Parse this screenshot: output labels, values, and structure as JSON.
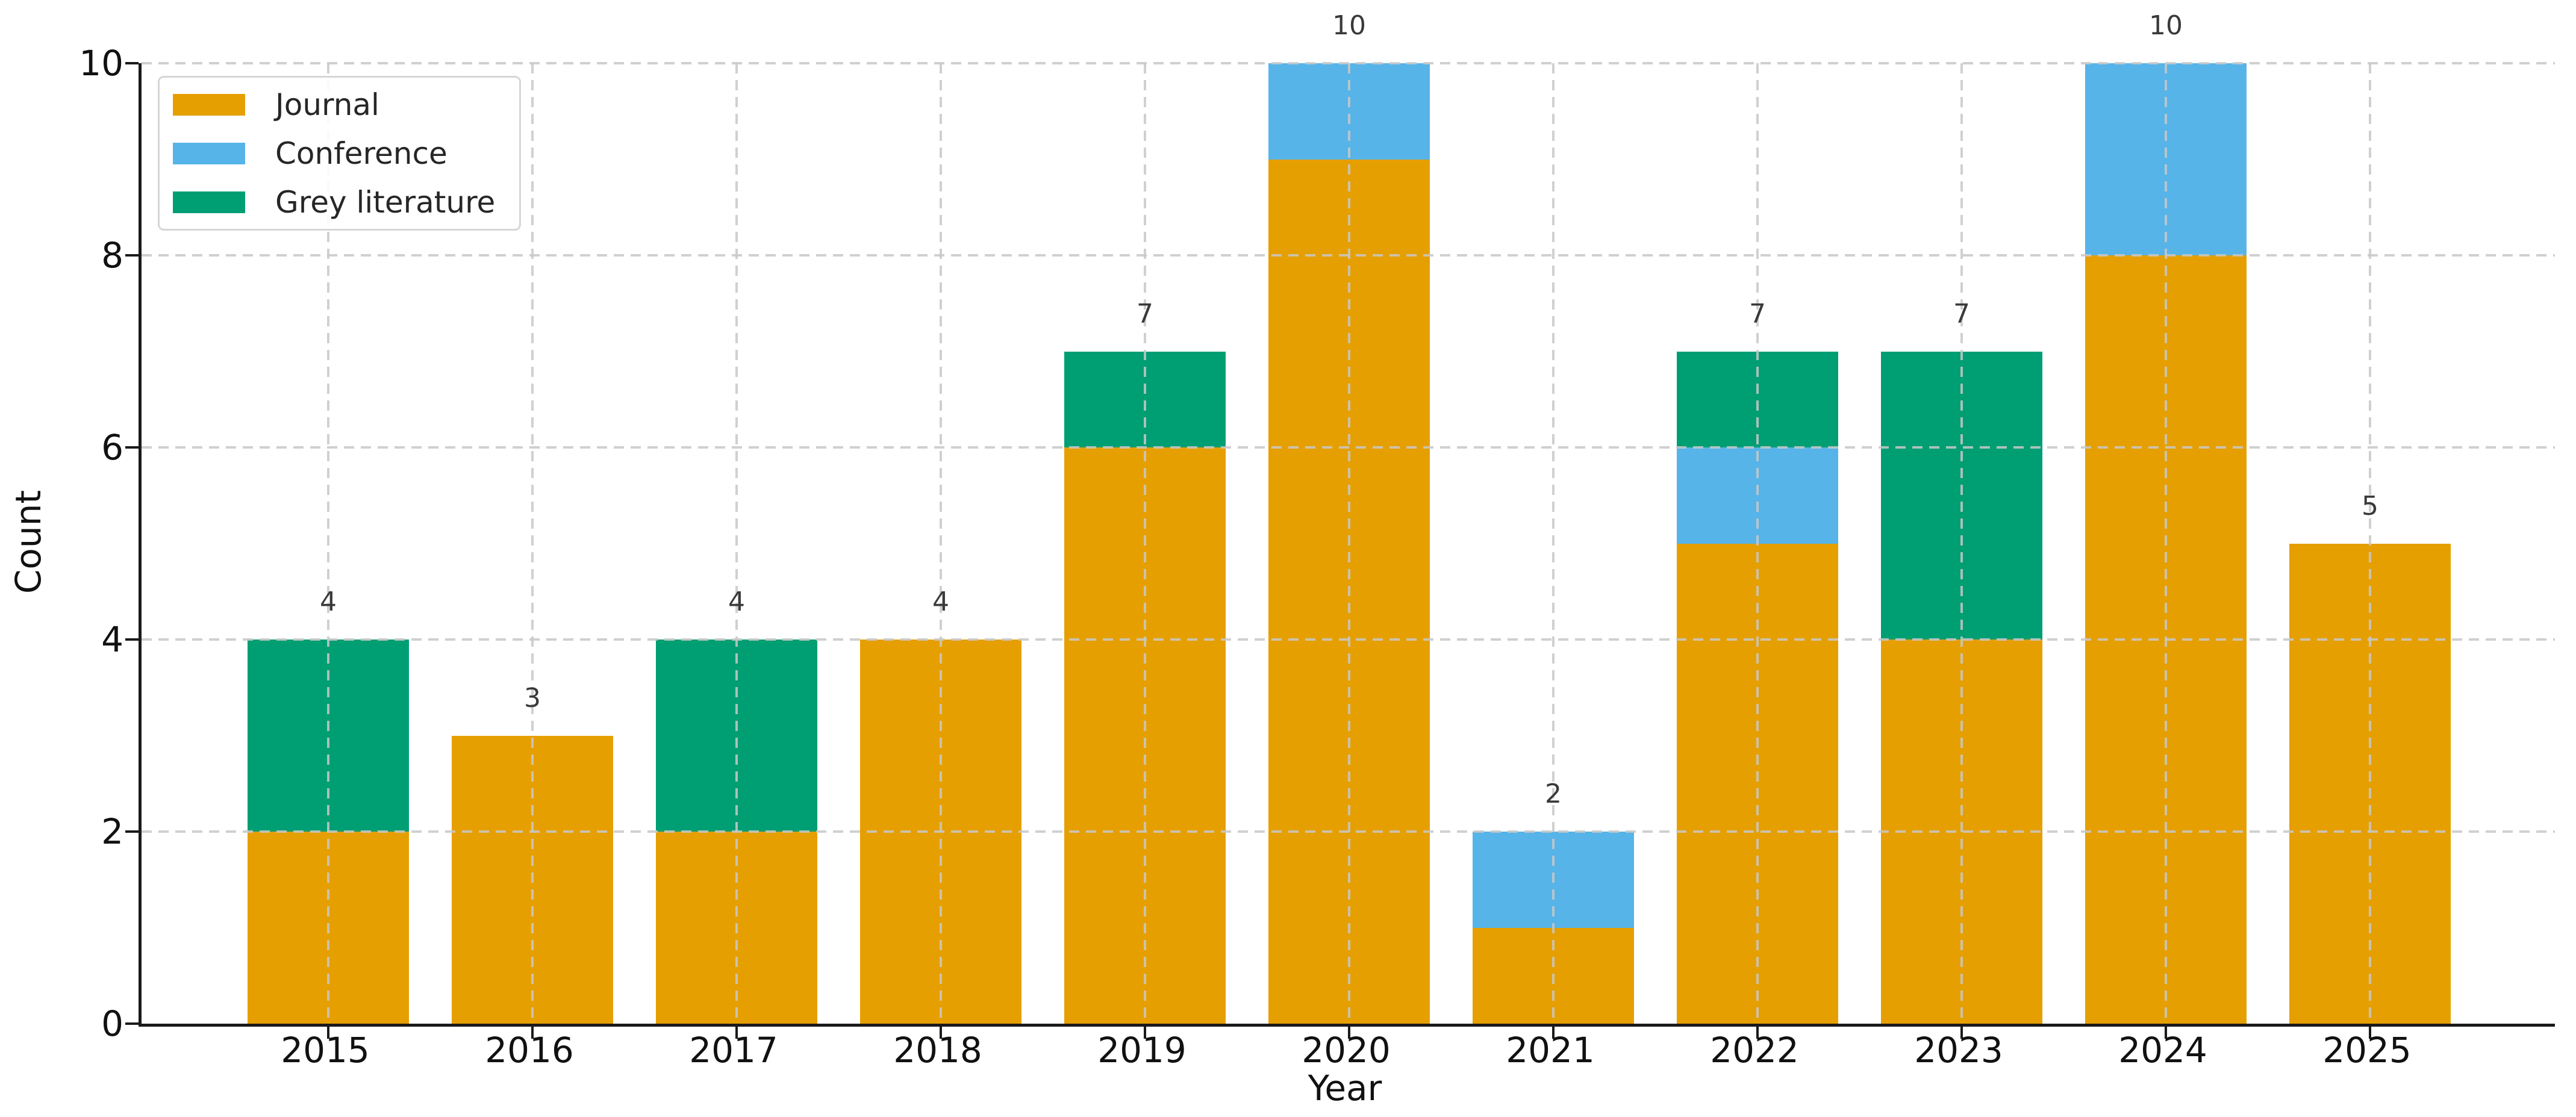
{
  "chart_data": {
    "type": "bar",
    "stacked": true,
    "xlabel": "Year",
    "ylabel": "Count",
    "categories": [
      "2015",
      "2016",
      "2017",
      "2018",
      "2019",
      "2020",
      "2021",
      "2022",
      "2023",
      "2024",
      "2025"
    ],
    "series": [
      {
        "name": "Journal",
        "color": "#E69F00",
        "values": [
          2,
          3,
          2,
          4,
          6,
          9,
          1,
          5,
          4,
          8,
          5
        ]
      },
      {
        "name": "Conference",
        "color": "#56B4E9",
        "values": [
          0,
          0,
          0,
          0,
          0,
          1,
          1,
          1,
          0,
          2,
          0
        ]
      },
      {
        "name": "Grey literature",
        "color": "#009E73",
        "values": [
          2,
          0,
          2,
          0,
          1,
          0,
          0,
          1,
          3,
          0,
          0
        ]
      }
    ],
    "bar_total_labels": [
      "4",
      "3",
      "4",
      "4",
      "7",
      "10",
      "2",
      "7",
      "7",
      "10",
      "5"
    ],
    "ylim": [
      0,
      10
    ],
    "yticks": [
      "0",
      "2",
      "4",
      "6",
      "8",
      "10"
    ],
    "grid": true,
    "grid_style": "dashed",
    "grid_color": "#c8c8c8",
    "legend_position": "upper-left",
    "axis_color": "#1a1a1a",
    "annotation_color": "#3a3a3a",
    "background": "#ffffff"
  }
}
